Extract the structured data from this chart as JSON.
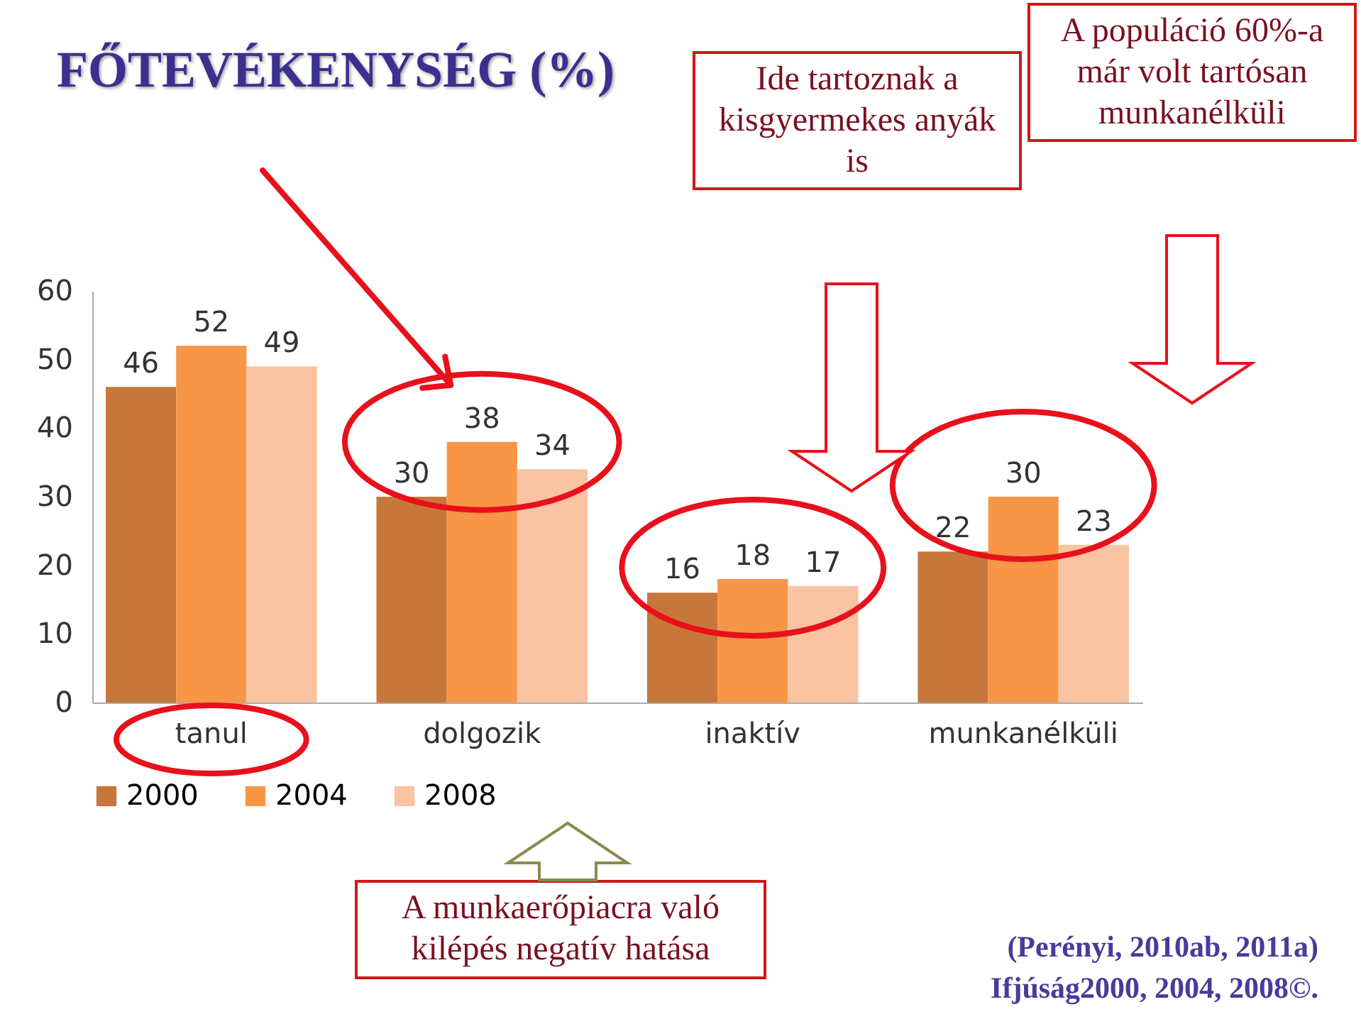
{
  "chart_data": {
    "type": "bar",
    "title": "FŐTEVÉKENYSÉG (%)",
    "categories": [
      "tanul",
      "dolgozik",
      "inaktív",
      "munkanélküli"
    ],
    "series": [
      {
        "name": "2000",
        "color": "#c8773a",
        "values": [
          46,
          30,
          16,
          22
        ]
      },
      {
        "name": "2004",
        "color": "#f79646",
        "values": [
          52,
          38,
          18,
          30
        ]
      },
      {
        "name": "2008",
        "color": "#fac3a2",
        "values": [
          49,
          34,
          17,
          23
        ]
      }
    ],
    "ylim": [
      0,
      60
    ],
    "yticks": [
      0,
      10,
      20,
      30,
      40,
      50,
      60
    ],
    "grid": false,
    "legend": "bottom",
    "data_labels": true,
    "annotations": [
      "Ide tartoznak a kisgyermekes anyák is",
      "A populáció 60%-a már volt tartósan munkanélküli",
      "A munkaerőpiacra való kilépés negatív hatása",
      "(Perényi, 2010ab, 2011a)",
      "Ifjúság2000, 2004, 2008©."
    ]
  }
}
